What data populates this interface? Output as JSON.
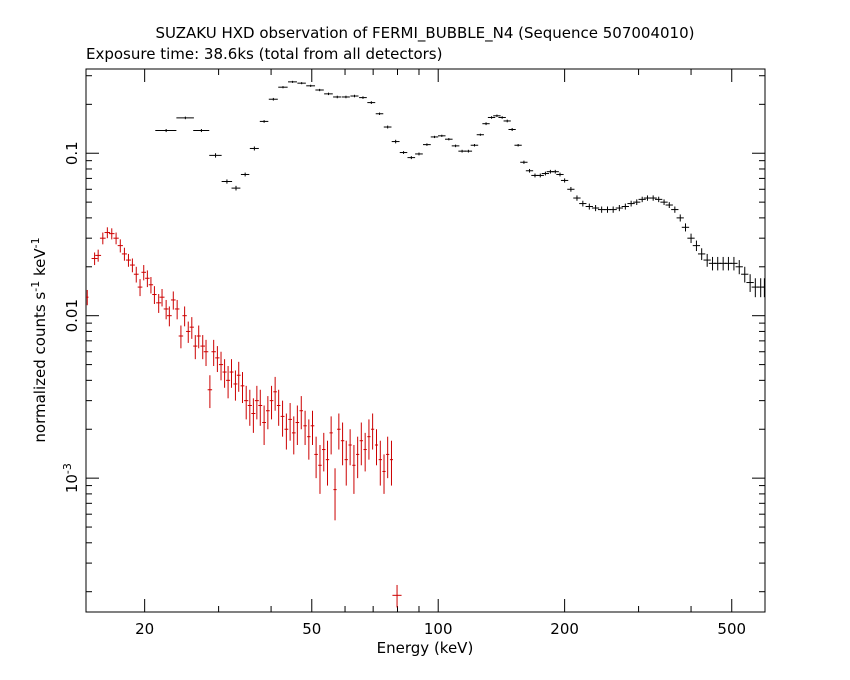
{
  "chart_data": {
    "type": "scatter",
    "title": "SUZAKU HXD observation of FERMI_BUBBLE_N4 (Sequence 507004010)",
    "subtitle": "Exposure time: 38.6ks (total from all detectors)",
    "xlabel": "Energy (keV)",
    "ylabel": "normalized counts s",
    "ylabel_sup1": "-1",
    "ylabel_mid": " keV",
    "ylabel_sup2": "-1",
    "x_scale": "log",
    "y_scale": "log",
    "xlim": [
      14.5,
      600
    ],
    "ylim": [
      0.00015,
      0.33
    ],
    "grid": false,
    "x_ticks": [
      {
        "value": 20,
        "label": "20"
      },
      {
        "value": 50,
        "label": "50"
      },
      {
        "value": 100,
        "label": "100"
      },
      {
        "value": 200,
        "label": "200"
      },
      {
        "value": 500,
        "label": "500"
      }
    ],
    "y_ticks": [
      {
        "value": 0.1,
        "label": "0.1"
      },
      {
        "value": 0.01,
        "label": "0.01"
      },
      {
        "value": 0.001,
        "label": "10",
        "sup": "-3"
      }
    ],
    "series": [
      {
        "color": "#000000",
        "points": [
          [
            22.5,
            0.138,
            1.3,
            0.003
          ],
          [
            25.0,
            0.165,
            1.2,
            0.003
          ],
          [
            27.3,
            0.138,
            1.2,
            0.003
          ],
          [
            29.5,
            0.097,
            1.0,
            0.003
          ],
          [
            31.4,
            0.067,
            0.9,
            0.002
          ],
          [
            33.0,
            0.061,
            0.8,
            0.002
          ],
          [
            34.7,
            0.074,
            0.8,
            0.002
          ],
          [
            36.5,
            0.107,
            0.9,
            0.003
          ],
          [
            38.5,
            0.157,
            0.9,
            0.003
          ],
          [
            40.5,
            0.215,
            1.0,
            0.004
          ],
          [
            42.7,
            0.255,
            1.1,
            0.004
          ],
          [
            45.0,
            0.275,
            1.1,
            0.004
          ],
          [
            47.3,
            0.27,
            1.1,
            0.004
          ],
          [
            49.7,
            0.26,
            1.2,
            0.004
          ],
          [
            52.2,
            0.245,
            1.2,
            0.004
          ],
          [
            54.8,
            0.232,
            1.3,
            0.004
          ],
          [
            57.5,
            0.222,
            1.3,
            0.004
          ],
          [
            60.3,
            0.222,
            1.3,
            0.004
          ],
          [
            63.2,
            0.225,
            1.4,
            0.004
          ],
          [
            66.2,
            0.22,
            1.4,
            0.004
          ],
          [
            69.3,
            0.205,
            1.5,
            0.004
          ],
          [
            72.5,
            0.175,
            1.5,
            0.003
          ],
          [
            75.8,
            0.145,
            1.6,
            0.003
          ],
          [
            79.2,
            0.118,
            1.7,
            0.003
          ],
          [
            82.7,
            0.101,
            1.7,
            0.002
          ],
          [
            86.3,
            0.094,
            1.8,
            0.002
          ],
          [
            90.0,
            0.099,
            1.9,
            0.002
          ],
          [
            94.0,
            0.113,
            2.0,
            0.002
          ],
          [
            98.0,
            0.126,
            2.0,
            0.002
          ],
          [
            102.0,
            0.128,
            2.1,
            0.002
          ],
          [
            106.0,
            0.122,
            2.2,
            0.002
          ],
          [
            110.0,
            0.111,
            2.3,
            0.002
          ],
          [
            114.0,
            0.103,
            2.3,
            0.002
          ],
          [
            118.0,
            0.103,
            2.4,
            0.002
          ],
          [
            122.0,
            0.112,
            2.5,
            0.002
          ],
          [
            126.0,
            0.13,
            2.5,
            0.002
          ],
          [
            130.0,
            0.152,
            2.6,
            0.003
          ],
          [
            134.0,
            0.166,
            2.7,
            0.003
          ],
          [
            138.0,
            0.17,
            2.8,
            0.003
          ],
          [
            142.0,
            0.166,
            2.9,
            0.003
          ],
          [
            146.0,
            0.158,
            2.9,
            0.003
          ],
          [
            150.0,
            0.14,
            3.0,
            0.003
          ],
          [
            155.0,
            0.112,
            3.1,
            0.002
          ],
          [
            160.0,
            0.088,
            3.2,
            0.002
          ],
          [
            165.0,
            0.078,
            3.3,
            0.002
          ],
          [
            170.0,
            0.073,
            3.4,
            0.002
          ],
          [
            175.0,
            0.073,
            3.5,
            0.002
          ],
          [
            180.0,
            0.075,
            3.6,
            0.002
          ],
          [
            185.0,
            0.077,
            3.7,
            0.002
          ],
          [
            190.0,
            0.077,
            3.8,
            0.002
          ],
          [
            195.0,
            0.074,
            3.9,
            0.002
          ],
          [
            200.0,
            0.068,
            4.0,
            0.002
          ],
          [
            207.0,
            0.06,
            4.1,
            0.002
          ],
          [
            214.0,
            0.053,
            4.3,
            0.002
          ],
          [
            221.0,
            0.049,
            4.4,
            0.002
          ],
          [
            229.0,
            0.047,
            4.6,
            0.002
          ],
          [
            237.0,
            0.046,
            4.7,
            0.002
          ],
          [
            245.0,
            0.045,
            4.9,
            0.002
          ],
          [
            253.0,
            0.045,
            5.1,
            0.002
          ],
          [
            261.0,
            0.045,
            5.2,
            0.002
          ],
          [
            270.0,
            0.046,
            5.4,
            0.002
          ],
          [
            279.0,
            0.047,
            5.6,
            0.002
          ],
          [
            288.0,
            0.049,
            5.8,
            0.002
          ],
          [
            297.0,
            0.05,
            5.9,
            0.002
          ],
          [
            306.0,
            0.052,
            6.1,
            0.002
          ],
          [
            315.0,
            0.053,
            6.3,
            0.002
          ],
          [
            325.0,
            0.053,
            6.5,
            0.002
          ],
          [
            335.0,
            0.052,
            6.7,
            0.002
          ],
          [
            345.0,
            0.05,
            6.9,
            0.002
          ],
          [
            355.0,
            0.048,
            7.1,
            0.002
          ],
          [
            366.0,
            0.045,
            7.3,
            0.002
          ],
          [
            377.0,
            0.04,
            7.5,
            0.002
          ],
          [
            388.0,
            0.035,
            7.8,
            0.002
          ],
          [
            400.0,
            0.03,
            8.0,
            0.002
          ],
          [
            412.0,
            0.027,
            8.2,
            0.002
          ],
          [
            424.0,
            0.024,
            8.5,
            0.002
          ],
          [
            437.0,
            0.022,
            8.7,
            0.002
          ],
          [
            450.0,
            0.021,
            9.0,
            0.002
          ],
          [
            463.0,
            0.021,
            9.3,
            0.002
          ],
          [
            477.0,
            0.021,
            9.5,
            0.002
          ],
          [
            491.0,
            0.021,
            9.8,
            0.002
          ],
          [
            506.0,
            0.021,
            10.1,
            0.002
          ],
          [
            521.0,
            0.02,
            10.4,
            0.002
          ],
          [
            537.0,
            0.018,
            10.7,
            0.002
          ],
          [
            553.0,
            0.016,
            11.1,
            0.002
          ],
          [
            569.0,
            0.015,
            11.4,
            0.002
          ],
          [
            586.0,
            0.015,
            11.7,
            0.002
          ],
          [
            598.0,
            0.015,
            6.0,
            0.002
          ]
        ]
      },
      {
        "color": "#cc0000",
        "points": [
          [
            14.6,
            0.013,
            0.1,
            0.0014
          ],
          [
            15.2,
            0.0225,
            0.25,
            0.002
          ],
          [
            15.5,
            0.0235,
            0.25,
            0.002
          ],
          [
            15.9,
            0.03,
            0.25,
            0.0025
          ],
          [
            16.3,
            0.0325,
            0.25,
            0.0025
          ],
          [
            16.7,
            0.032,
            0.25,
            0.0025
          ],
          [
            17.1,
            0.03,
            0.25,
            0.0025
          ],
          [
            17.5,
            0.027,
            0.25,
            0.0025
          ],
          [
            17.9,
            0.024,
            0.25,
            0.0022
          ],
          [
            18.3,
            0.022,
            0.25,
            0.002
          ],
          [
            18.7,
            0.0205,
            0.25,
            0.002
          ],
          [
            19.1,
            0.018,
            0.25,
            0.002
          ],
          [
            19.5,
            0.015,
            0.25,
            0.0018
          ],
          [
            19.9,
            0.0185,
            0.25,
            0.002
          ],
          [
            20.3,
            0.017,
            0.25,
            0.002
          ],
          [
            20.7,
            0.0155,
            0.25,
            0.0018
          ],
          [
            21.1,
            0.0135,
            0.25,
            0.0017
          ],
          [
            21.6,
            0.012,
            0.3,
            0.0016
          ],
          [
            22.0,
            0.013,
            0.3,
            0.0016
          ],
          [
            22.5,
            0.011,
            0.3,
            0.0015
          ],
          [
            22.9,
            0.01,
            0.3,
            0.0014
          ],
          [
            23.4,
            0.0125,
            0.3,
            0.0016
          ],
          [
            23.9,
            0.011,
            0.3,
            0.0015
          ],
          [
            24.4,
            0.0075,
            0.3,
            0.0012
          ],
          [
            24.9,
            0.01,
            0.3,
            0.0014
          ],
          [
            25.4,
            0.008,
            0.3,
            0.0012
          ],
          [
            25.9,
            0.0085,
            0.3,
            0.0013
          ],
          [
            26.4,
            0.0065,
            0.3,
            0.0011
          ],
          [
            26.9,
            0.0075,
            0.3,
            0.0012
          ],
          [
            27.5,
            0.0065,
            0.35,
            0.0011
          ],
          [
            28.0,
            0.006,
            0.35,
            0.0011
          ],
          [
            28.6,
            0.0035,
            0.35,
            0.0008
          ],
          [
            29.2,
            0.006,
            0.35,
            0.0011
          ],
          [
            29.8,
            0.0055,
            0.35,
            0.001
          ],
          [
            30.4,
            0.005,
            0.35,
            0.001
          ],
          [
            31.0,
            0.0045,
            0.35,
            0.0009
          ],
          [
            31.6,
            0.004,
            0.35,
            0.0009
          ],
          [
            32.2,
            0.0045,
            0.35,
            0.0009
          ],
          [
            32.9,
            0.0038,
            0.35,
            0.0008
          ],
          [
            33.5,
            0.0043,
            0.35,
            0.0009
          ],
          [
            34.2,
            0.0037,
            0.35,
            0.0008
          ],
          [
            34.9,
            0.003,
            0.4,
            0.0007
          ],
          [
            35.6,
            0.0028,
            0.4,
            0.0007
          ],
          [
            36.3,
            0.0025,
            0.4,
            0.0006
          ],
          [
            37.0,
            0.003,
            0.4,
            0.0007
          ],
          [
            37.7,
            0.0028,
            0.4,
            0.0007
          ],
          [
            38.5,
            0.0022,
            0.4,
            0.0006
          ],
          [
            39.3,
            0.0026,
            0.4,
            0.0006
          ],
          [
            40.1,
            0.003,
            0.4,
            0.0007
          ],
          [
            40.9,
            0.0034,
            0.4,
            0.0008
          ],
          [
            41.7,
            0.0028,
            0.4,
            0.0007
          ],
          [
            42.6,
            0.0024,
            0.45,
            0.0006
          ],
          [
            43.5,
            0.002,
            0.45,
            0.0005
          ],
          [
            44.4,
            0.0023,
            0.45,
            0.0006
          ],
          [
            45.3,
            0.0019,
            0.45,
            0.0005
          ],
          [
            46.2,
            0.0022,
            0.45,
            0.0006
          ],
          [
            47.2,
            0.0026,
            0.45,
            0.0006
          ],
          [
            48.2,
            0.0021,
            0.45,
            0.0005
          ],
          [
            49.2,
            0.0018,
            0.45,
            0.0005
          ],
          [
            50.2,
            0.0021,
            0.5,
            0.0005
          ],
          [
            51.2,
            0.0014,
            0.5,
            0.0004
          ],
          [
            52.3,
            0.0012,
            0.5,
            0.0004
          ],
          [
            53.4,
            0.0015,
            0.5,
            0.0004
          ],
          [
            54.5,
            0.0013,
            0.5,
            0.0004
          ],
          [
            55.6,
            0.0019,
            0.5,
            0.0005
          ],
          [
            56.8,
            0.00085,
            0.5,
            0.0003
          ],
          [
            58.0,
            0.002,
            0.55,
            0.0005
          ],
          [
            59.2,
            0.0017,
            0.55,
            0.0005
          ],
          [
            60.4,
            0.0013,
            0.55,
            0.0004
          ],
          [
            61.7,
            0.0016,
            0.55,
            0.0004
          ],
          [
            63.0,
            0.0012,
            0.55,
            0.0004
          ],
          [
            64.3,
            0.0014,
            0.55,
            0.0004
          ],
          [
            65.6,
            0.0017,
            0.6,
            0.0005
          ],
          [
            67.0,
            0.0015,
            0.6,
            0.0004
          ],
          [
            68.4,
            0.0018,
            0.6,
            0.0005
          ],
          [
            69.8,
            0.002,
            0.6,
            0.0005
          ],
          [
            71.3,
            0.0016,
            0.6,
            0.0004
          ],
          [
            72.8,
            0.0013,
            0.65,
            0.0004
          ],
          [
            74.3,
            0.0011,
            0.65,
            0.0003
          ],
          [
            75.8,
            0.0014,
            0.65,
            0.0004
          ],
          [
            77.4,
            0.0013,
            0.65,
            0.0004
          ],
          [
            79.8,
            0.00019,
            2.0,
            3e-05
          ]
        ]
      }
    ]
  }
}
